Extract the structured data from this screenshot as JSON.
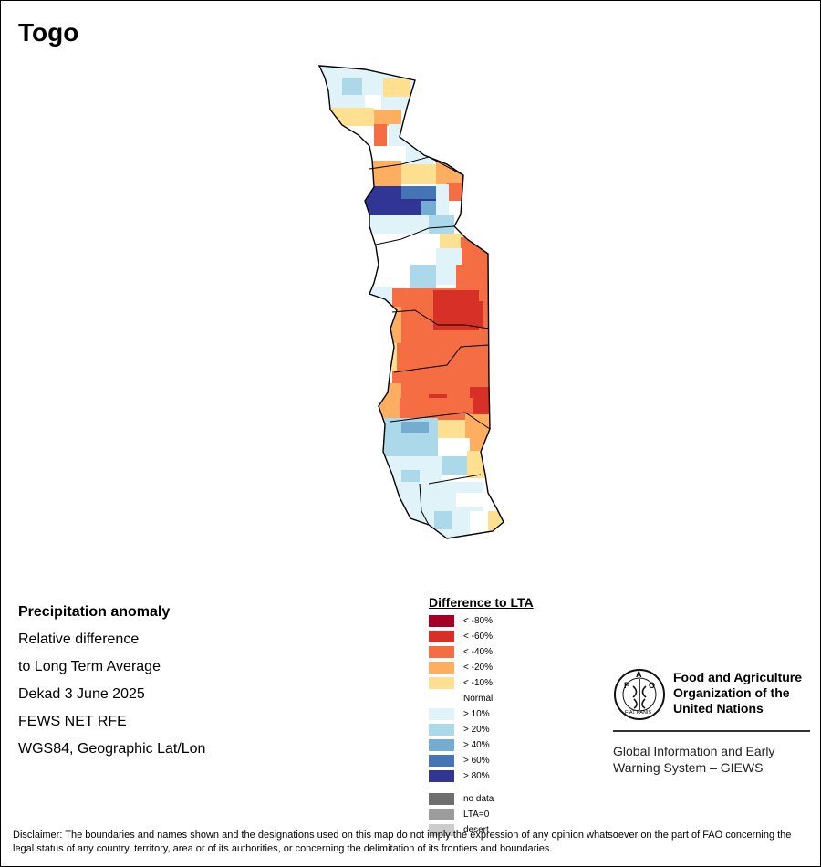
{
  "title": "Togo",
  "info": {
    "heading": "Precipitation anomaly",
    "lines": [
      "Relative difference",
      "to Long Term Average",
      "Dekad 3 June 2025",
      "FEWS NET RFE",
      "WGS84, Geographic Lat/Lon"
    ]
  },
  "legend": {
    "title": "Difference to LTA",
    "classes": [
      {
        "label": "< -80%",
        "color": "#a50026"
      },
      {
        "label": "< -60%",
        "color": "#d73027"
      },
      {
        "label": "< -40%",
        "color": "#f46d43"
      },
      {
        "label": "< -20%",
        "color": "#fdae61"
      },
      {
        "label": "< -10%",
        "color": "#fee090"
      },
      {
        "label": "Normal",
        "color": "#ffffff"
      },
      {
        "label": "> 10%",
        "color": "#e0f3f8"
      },
      {
        "label": "> 20%",
        "color": "#abd9e9"
      },
      {
        "label": "> 40%",
        "color": "#74add1"
      },
      {
        "label": "> 60%",
        "color": "#4575b4"
      },
      {
        "label": "> 80%",
        "color": "#313695"
      }
    ],
    "special": [
      {
        "label": "no data",
        "color": "#6e6e6e"
      },
      {
        "label": "LTA=0",
        "color": "#9c9c9c"
      },
      {
        "label": "desert",
        "color": "#cccccc"
      }
    ]
  },
  "logo": {
    "seal_text": "FIAT PANIS",
    "org_lines": [
      "Food and Agriculture",
      "Organization of the",
      "United Nations"
    ],
    "giews_lines": [
      "Global Information and Early",
      "Warning System – GIEWS"
    ]
  },
  "disclaimer": "Disclaimer: The boundaries and names shown and the designations used on this map do not imply the expression of any opinion whatsoever on the part of FAO concerning the legal status of any country, territory, area or of its authorities, or concerning the delimitation of its frontiers and boundaries."
}
